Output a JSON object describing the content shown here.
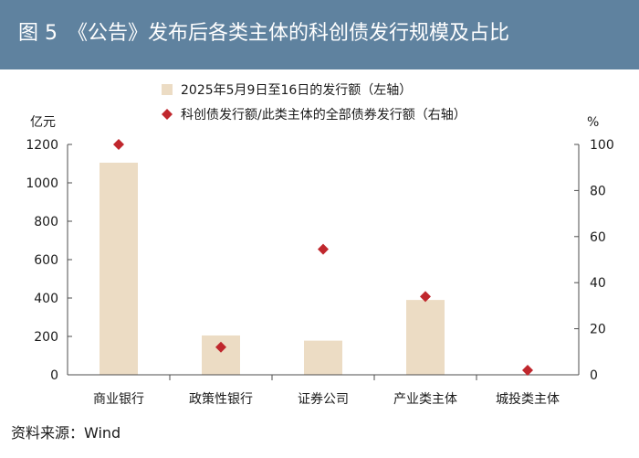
{
  "header": {
    "title": "图 5　《公告》发布后各类主体的科创债发行规模及占比"
  },
  "footer": {
    "source": "资料来源：Wind"
  },
  "colors": {
    "header_bg": "#5f829f",
    "bar": "#ecdcc4",
    "marker": "#c0272d",
    "axis": "#4d4d4d"
  },
  "chart_data": {
    "type": "bar",
    "categories": [
      "商业银行",
      "政策性银行",
      "证券公司",
      "产业类主体",
      "城投类主体"
    ],
    "series": [
      {
        "name": "2025年5月9日至16日的发行额（左轴）",
        "type": "bar",
        "axis": "left",
        "values": [
          1105,
          205,
          178,
          390,
          0
        ]
      },
      {
        "name": "科创债发行额/此类主体的全部债券发行额（右轴）",
        "type": "scatter",
        "axis": "right",
        "values": [
          100,
          12,
          54.5,
          34,
          2
        ]
      }
    ],
    "left_axis": {
      "label": "亿元",
      "ylim": [
        0,
        1200
      ],
      "ticks": [
        0,
        200,
        400,
        600,
        800,
        1000,
        1200
      ]
    },
    "right_axis": {
      "label": "%",
      "ylim": [
        0,
        100
      ],
      "ticks": [
        0,
        20,
        40,
        60,
        80,
        100
      ]
    },
    "legend_position": "top-center",
    "grid": false
  }
}
